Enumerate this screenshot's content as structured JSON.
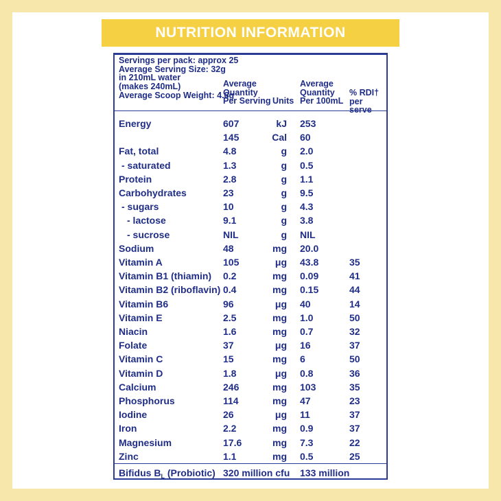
{
  "header": {
    "title": "NUTRITION INFORMATION"
  },
  "info": {
    "servings": "Servings per pack: approx 25",
    "serving_size": "Average Serving Size: 32g",
    "water": "in 210mL water",
    "makes": "(makes 240mL)",
    "scoop": "Average Scoop Weight: 4.6g"
  },
  "columns": {
    "per_serving_1": "Average",
    "per_serving_2": "Quantity",
    "per_serving_3": "Per Serving",
    "units": "Units",
    "per100_1": "Average",
    "per100_2": "Quantity",
    "per100_3": "Per 100mL",
    "rdi_1": "% RDI†",
    "rdi_2": "per serve"
  },
  "rows": [
    {
      "name": "Energy",
      "serving": "607",
      "unit": "kJ",
      "per100": "253",
      "rdi": ""
    },
    {
      "name": "",
      "serving": "145",
      "unit": "Cal",
      "per100": "60",
      "rdi": ""
    },
    {
      "name": "Fat, total",
      "serving": "4.8",
      "unit": "g",
      "per100": "2.0",
      "rdi": ""
    },
    {
      "name": " - saturated",
      "serving": "1.3",
      "unit": "g",
      "per100": "0.5",
      "rdi": ""
    },
    {
      "name": "Protein",
      "serving": "2.8",
      "unit": "g",
      "per100": "1.1",
      "rdi": ""
    },
    {
      "name": "Carbohydrates",
      "serving": "23",
      "unit": "g",
      "per100": "9.5",
      "rdi": ""
    },
    {
      "name": " - sugars",
      "serving": "10",
      "unit": "g",
      "per100": "4.3",
      "rdi": ""
    },
    {
      "name": " - lactose",
      "serving": "9.1",
      "unit": "g",
      "per100": "3.8",
      "rdi": ""
    },
    {
      "name": " - sucrose",
      "serving": "NIL",
      "unit": "g",
      "per100": "NIL",
      "rdi": ""
    },
    {
      "name": "Sodium",
      "serving": "48",
      "unit": "mg",
      "per100": "20.0",
      "rdi": ""
    },
    {
      "name": "Vitamin A",
      "serving": "105",
      "unit": "μg",
      "per100": "43.8",
      "rdi": "35"
    },
    {
      "name": "Vitamin B1 (thiamin)",
      "serving": "0.2",
      "unit": "mg",
      "per100": "0.09",
      "rdi": "41"
    },
    {
      "name": "Vitamin B2 (riboflavin)",
      "serving": "0.4",
      "unit": "mg",
      "per100": "0.15",
      "rdi": "44"
    },
    {
      "name": "Vitamin B6",
      "serving": "96",
      "unit": "μg",
      "per100": "40",
      "rdi": "14"
    },
    {
      "name": "Vitamin E",
      "serving": "2.5",
      "unit": "mg",
      "per100": "1.0",
      "rdi": "50"
    },
    {
      "name": "Niacin",
      "serving": "1.6",
      "unit": "mg",
      "per100": "0.7",
      "rdi": "32"
    },
    {
      "name": "Folate",
      "serving": "37",
      "unit": "μg",
      "per100": "16",
      "rdi": "37"
    },
    {
      "name": "Vitamin C",
      "serving": "15",
      "unit": "mg",
      "per100": "6",
      "rdi": "50"
    },
    {
      "name": "Vitamin D",
      "serving": "1.8",
      "unit": "μg",
      "per100": "0.8",
      "rdi": "36"
    },
    {
      "name": "Calcium",
      "serving": "246",
      "unit": "mg",
      "per100": "103",
      "rdi": "35"
    },
    {
      "name": "Phosphorus",
      "serving": "114",
      "unit": "mg",
      "per100": "47",
      "rdi": "23"
    },
    {
      "name": "Iodine",
      "serving": "26",
      "unit": "μg",
      "per100": "11",
      "rdi": "37"
    },
    {
      "name": "Iron",
      "serving": "2.2",
      "unit": "mg",
      "per100": "0.9",
      "rdi": "37"
    },
    {
      "name": "Magnesium",
      "serving": "17.6",
      "unit": "mg",
      "per100": "7.3",
      "rdi": "22"
    },
    {
      "name": "Zinc",
      "serving": "1.1",
      "unit": "mg",
      "per100": "0.5",
      "rdi": "25"
    }
  ],
  "footer": {
    "name_main": "Bifidus B",
    "name_sub": "L",
    "name_tail": " (Probiotic)",
    "serving": "320 million cfu",
    "per100": "133 million"
  }
}
